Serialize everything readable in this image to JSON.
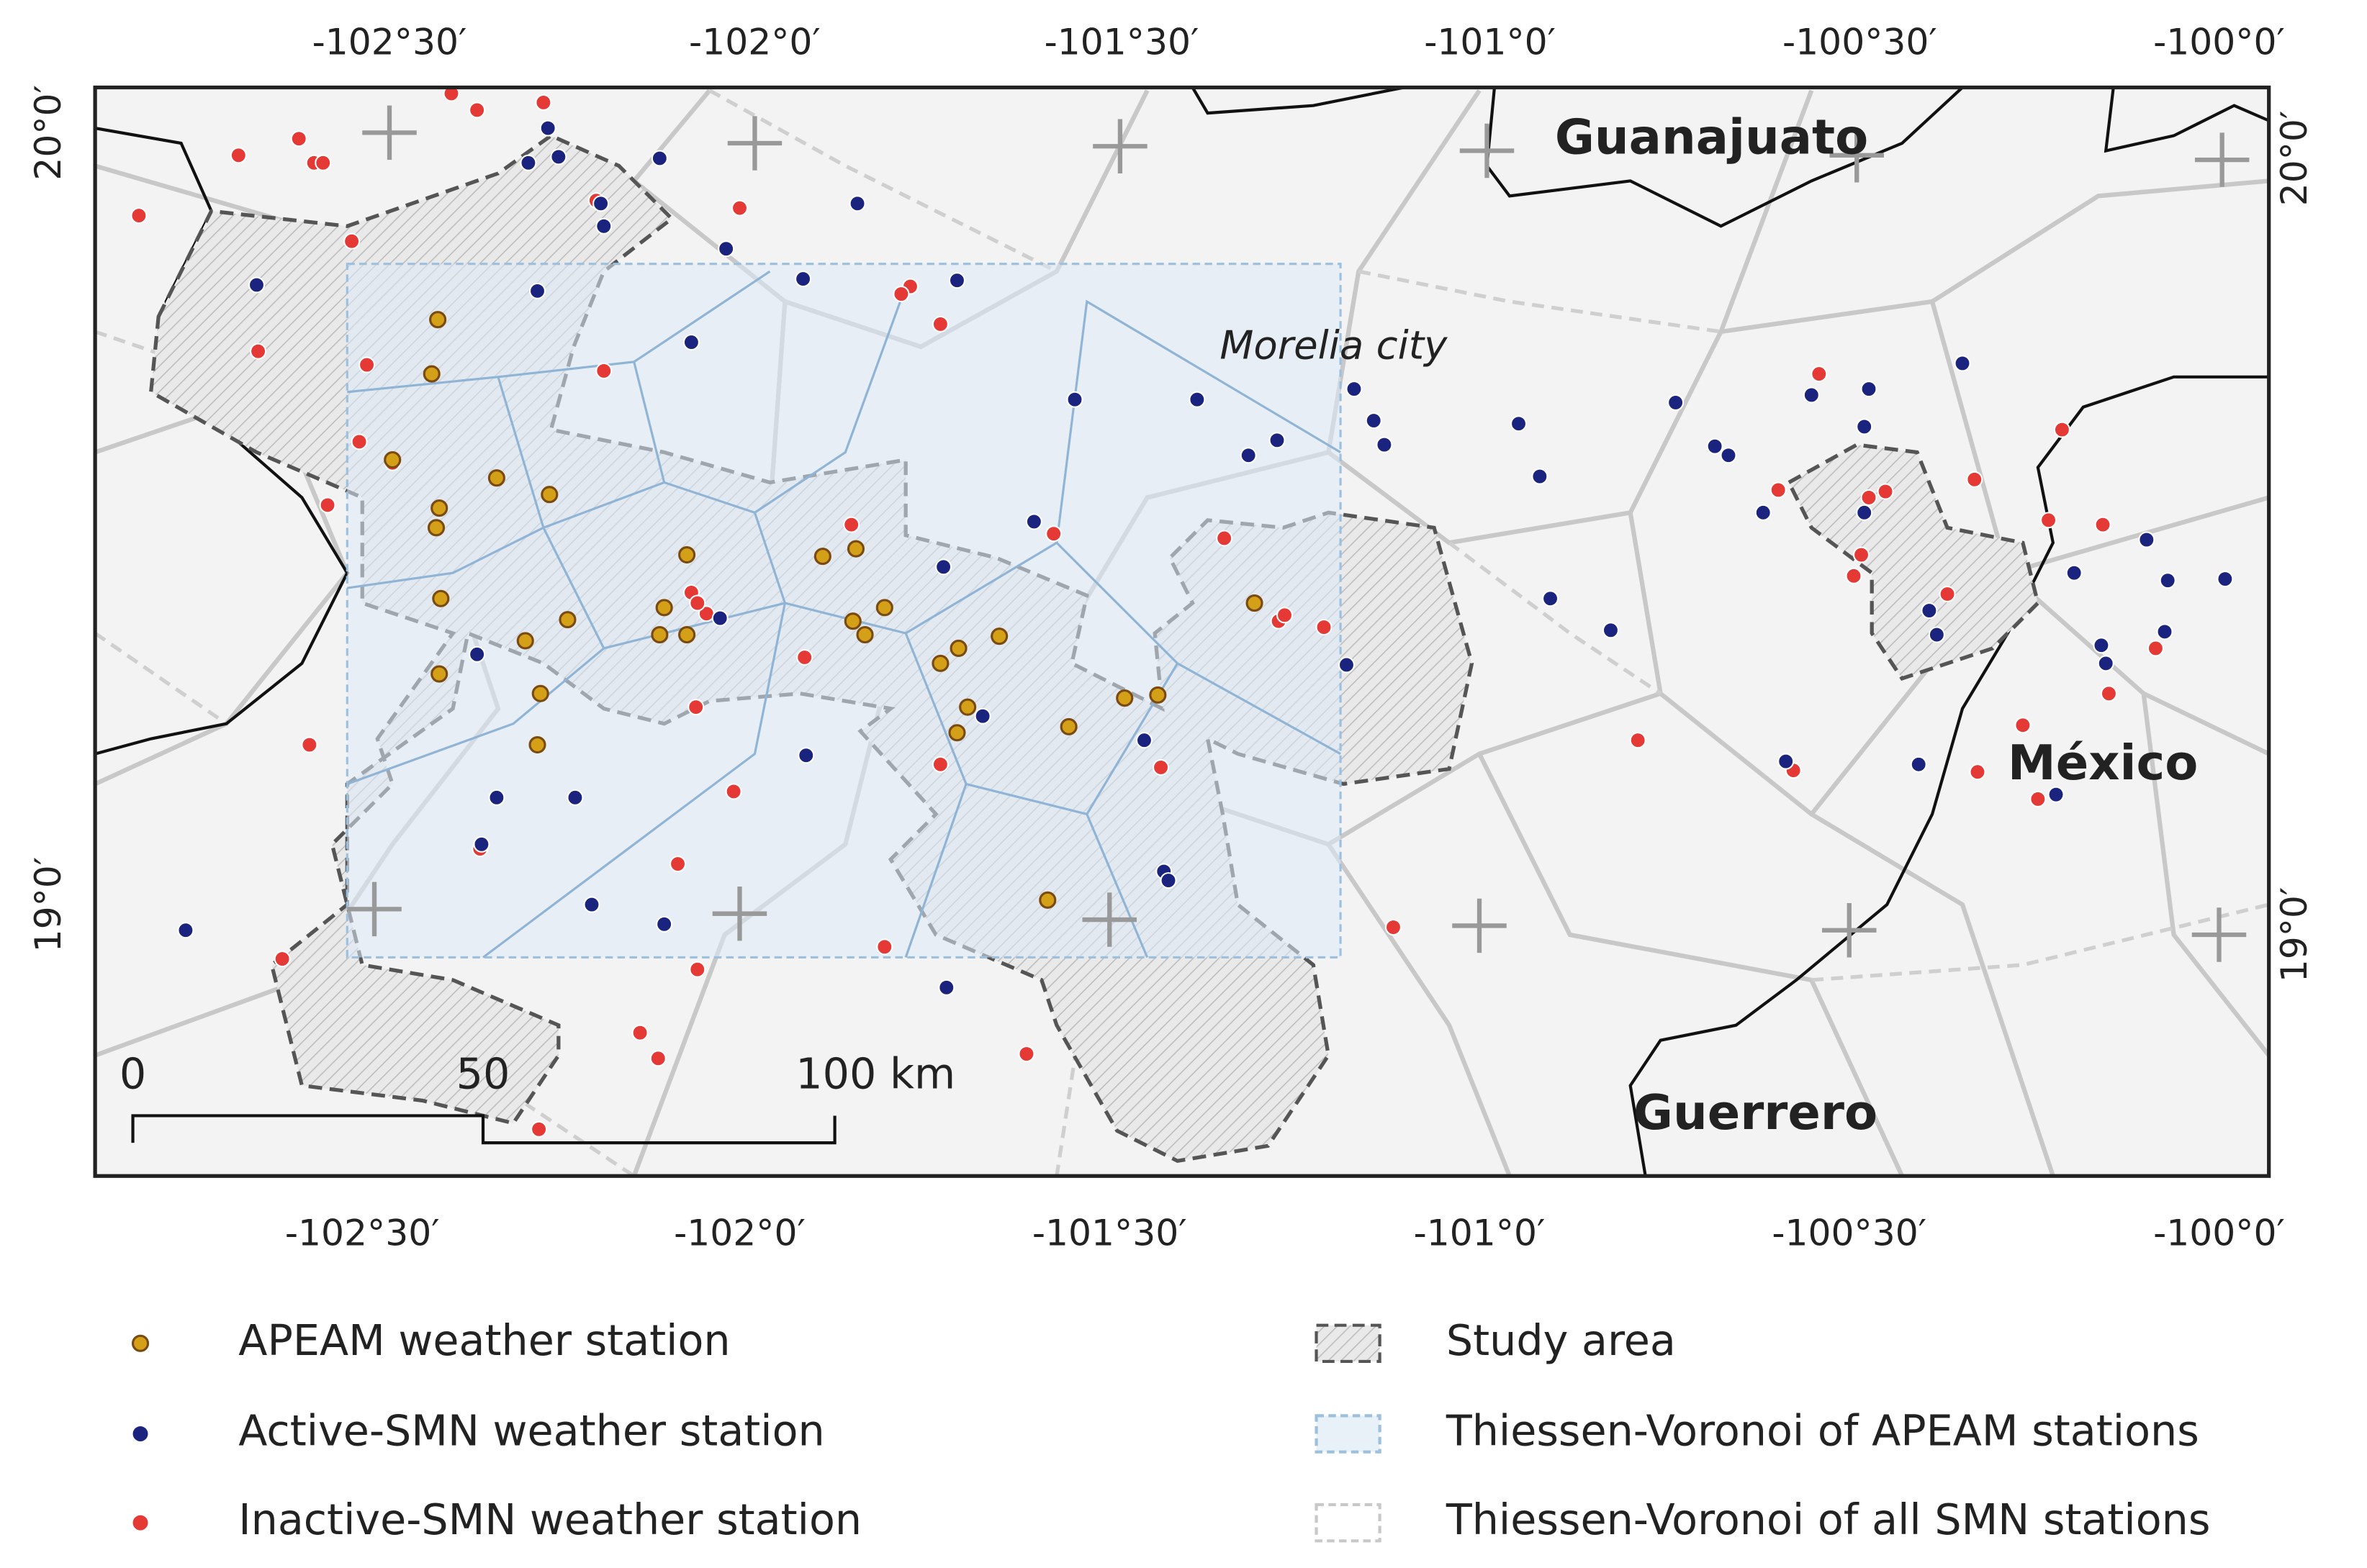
{
  "map": {
    "top_axis_labels": [
      "-102°30′",
      "-102°0′",
      "-101°30′",
      "-101°0′",
      "-100°30′",
      "-100°0′"
    ],
    "bottom_axis_labels": [
      "-102°30′",
      "-102°0′",
      "-101°30′",
      "-101°0′",
      "-100°30′",
      "-100°0′"
    ],
    "left_axis_labels": [
      "20°0′",
      "19°0′"
    ],
    "right_axis_labels": [
      "20°0′",
      "19°0′"
    ],
    "place_labels": {
      "guanajuato": "Guanajuato",
      "morelia": "Morelia city",
      "mexico": "México",
      "guerrero": "Guerrero"
    },
    "scale_bar": [
      "0",
      "50",
      "100 km"
    ],
    "legend": [
      "APEAM weather station",
      "Active-SMN weather station",
      "Inactive-SMN weather station",
      "Study area",
      "Thiessen-Voronoi of APEAM stations",
      "Thiessen-Voronoi of all SMN stations"
    ]
  }
}
